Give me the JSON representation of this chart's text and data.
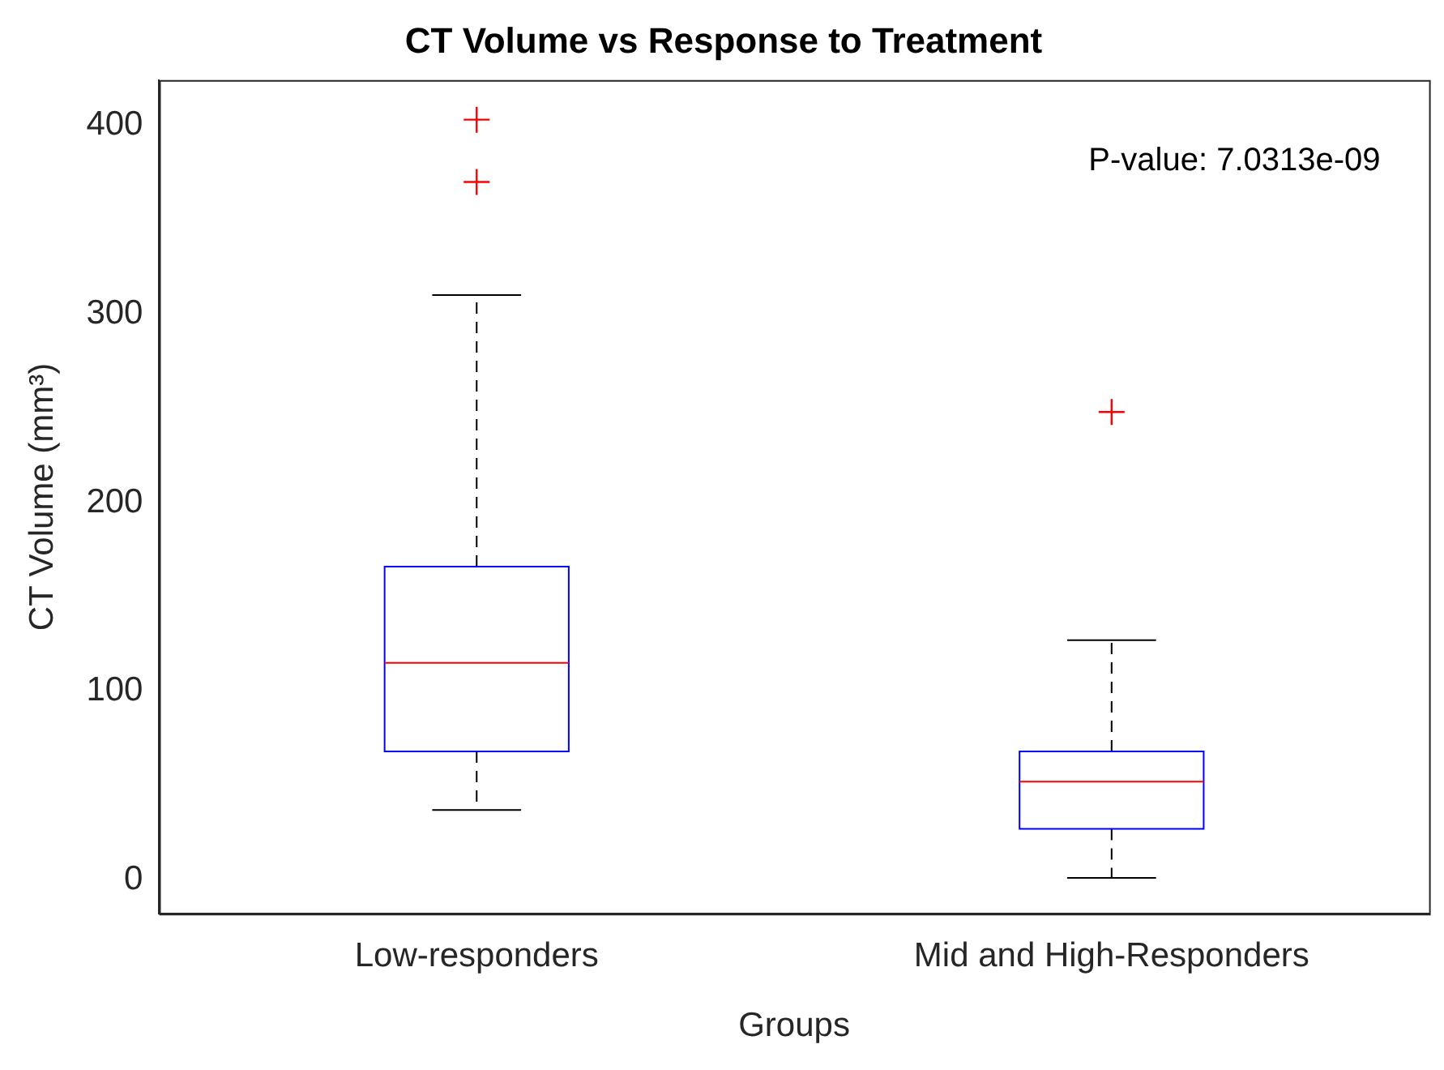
{
  "chart_data": {
    "type": "box",
    "title": "CT Volume vs Response to Treatment",
    "xlabel": "Groups",
    "ylabel": "CT Volume (mm³)",
    "categories": [
      "Low-responders",
      "Mid and High-Responders"
    ],
    "boxes": [
      {
        "low": 37,
        "q1": 68,
        "median": 115,
        "q3": 166,
        "high": 310,
        "outliers": [
          370,
          403
        ]
      },
      {
        "low": 1,
        "q1": 27,
        "median": 52,
        "q3": 68,
        "high": 127,
        "outliers": [
          248
        ]
      }
    ],
    "ylim": [
      -18,
      424
    ],
    "yticks": [
      0,
      100,
      200,
      300,
      400
    ],
    "grid": false,
    "annotations": [
      "P-value: 7.0313e-09"
    ]
  }
}
